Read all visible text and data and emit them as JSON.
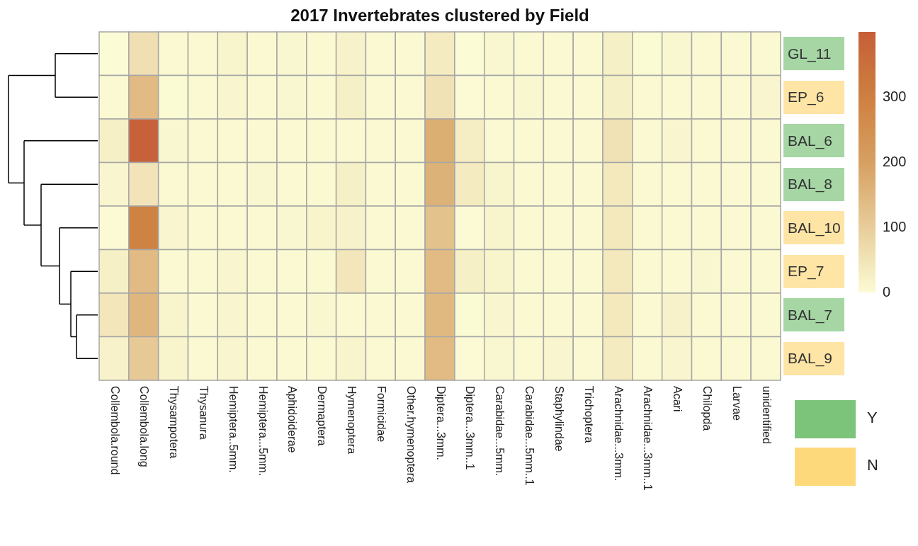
{
  "chart_data": [
    {
      "type": "heatmap",
      "title": "2017 Invertebrates clustered by Field",
      "categories": [
        "Collembola.round",
        "Collembola.long",
        "Thysampotera",
        "Thysanura",
        "Hemiptera..5mm.",
        "Hemiptera...5mm.",
        "Aphidoiderae",
        "Dermaptera",
        "Hymenoptera",
        "Formicidae",
        "Other.hymenoptera",
        "Diptera...3mm.",
        "Diptera...3mm..1",
        "Carabidae...5mm.",
        "Carabidae...5mm..1",
        "Staphylindae",
        "Trichoptera",
        "Arachnidae...3mm.",
        "Arachnidae...3mm..1",
        "Acari",
        "Chilopda",
        "Larvae",
        "unidentified"
      ],
      "y_categories": [
        "GL_11",
        "EP_6",
        "BAL_6",
        "BAL_8",
        "BAL_10",
        "EP_7",
        "BAL_7",
        "BAL_9"
      ],
      "cells": [
        [
          0,
          60,
          5,
          5,
          15,
          5,
          8,
          5,
          20,
          5,
          5,
          35,
          0,
          8,
          5,
          5,
          5,
          25,
          3,
          8,
          5,
          5,
          5
        ],
        [
          5,
          140,
          3,
          5,
          10,
          5,
          8,
          5,
          25,
          5,
          5,
          55,
          2,
          5,
          8,
          5,
          5,
          25,
          5,
          5,
          5,
          5,
          10
        ],
        [
          25,
          390,
          8,
          5,
          5,
          5,
          5,
          5,
          5,
          5,
          5,
          170,
          30,
          5,
          5,
          5,
          5,
          55,
          5,
          10,
          5,
          5,
          5
        ],
        [
          10,
          50,
          5,
          5,
          5,
          8,
          5,
          5,
          25,
          5,
          5,
          160,
          35,
          15,
          5,
          5,
          5,
          40,
          5,
          5,
          5,
          5,
          5
        ],
        [
          2,
          290,
          10,
          5,
          5,
          5,
          8,
          15,
          20,
          5,
          5,
          125,
          2,
          15,
          5,
          5,
          5,
          40,
          5,
          5,
          5,
          5,
          5
        ],
        [
          25,
          140,
          5,
          5,
          10,
          5,
          5,
          5,
          45,
          5,
          5,
          140,
          25,
          15,
          5,
          5,
          5,
          40,
          5,
          5,
          8,
          5,
          5
        ],
        [
          45,
          150,
          15,
          5,
          10,
          5,
          5,
          8,
          5,
          5,
          5,
          145,
          3,
          10,
          5,
          5,
          5,
          40,
          5,
          20,
          5,
          5,
          5
        ],
        [
          20,
          110,
          15,
          5,
          10,
          5,
          5,
          5,
          15,
          5,
          5,
          140,
          2,
          8,
          5,
          10,
          5,
          35,
          5,
          10,
          5,
          5,
          5
        ]
      ],
      "clim": [
        0,
        400
      ],
      "cticks": [
        0,
        100,
        200,
        300
      ],
      "colors": [
        "#7dc47b",
        "#fdd97c",
        "#7dc47b",
        "#7dc47b",
        "#fdd97c",
        "#fdd97c",
        "#7dc47b",
        "#fdd97c"
      ]
    },
    {
      "type": "other",
      "annotations": [
        "Y",
        "N"
      ],
      "colors": [
        "#7dc47b",
        "#fdd97c"
      ]
    }
  ]
}
